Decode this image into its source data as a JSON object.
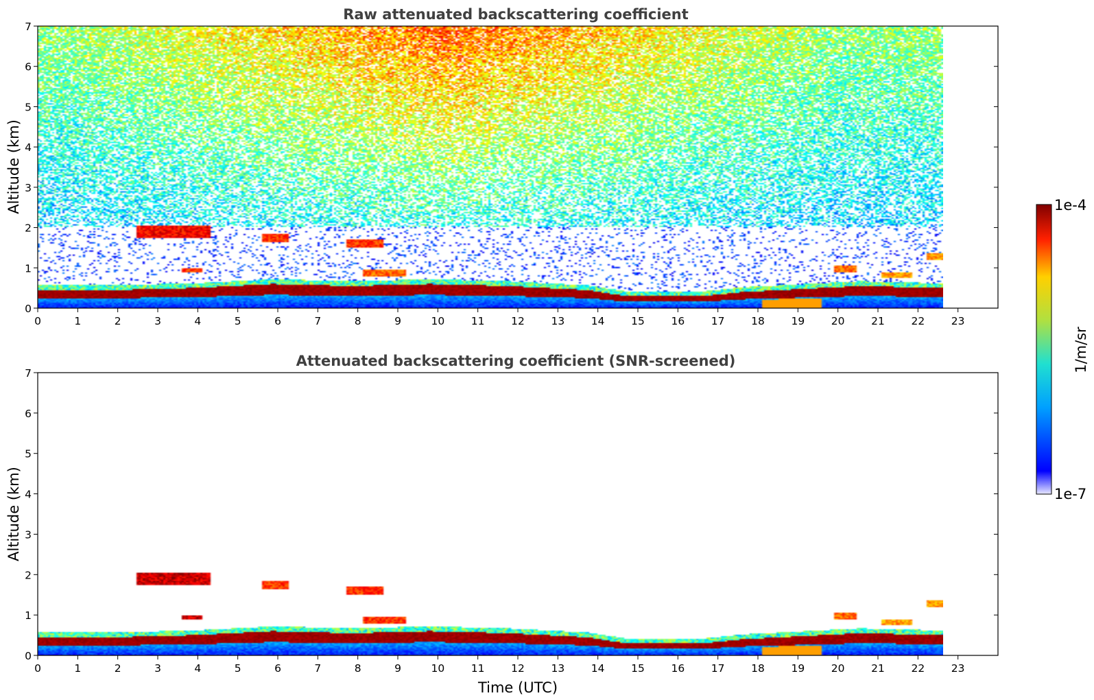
{
  "colorbar": {
    "max_label": "1e-4",
    "min_label": "1e-7",
    "unit_label": "1/m/sr",
    "colormap": "jet",
    "scale": "log",
    "range": [
      1e-07,
      0.0001
    ]
  },
  "chart_data": [
    {
      "type": "heatmap",
      "title": "Raw attenuated backscattering coefficient",
      "xlabel": "",
      "ylabel": "Altitude (km)",
      "xlim": [
        0,
        24
      ],
      "ylim": [
        0,
        7
      ],
      "xticks": [
        "0",
        "1",
        "2",
        "3",
        "4",
        "5",
        "6",
        "7",
        "8",
        "9",
        "10",
        "11",
        "12",
        "13",
        "14",
        "15",
        "16",
        "17",
        "18",
        "19",
        "20",
        "21",
        "22",
        "23"
      ],
      "yticks": [
        "0",
        "1",
        "2",
        "3",
        "4",
        "5",
        "6",
        "7"
      ],
      "data_extent_x": [
        0,
        23.1
      ],
      "boundary_layer_top_km": [
        [
          0,
          0.45
        ],
        [
          2,
          0.45
        ],
        [
          4,
          0.5
        ],
        [
          6,
          0.6
        ],
        [
          8,
          0.55
        ],
        [
          10,
          0.6
        ],
        [
          12,
          0.55
        ],
        [
          14,
          0.45
        ],
        [
          15,
          0.3
        ],
        [
          17,
          0.3
        ],
        [
          18,
          0.4
        ],
        [
          20,
          0.5
        ],
        [
          21,
          0.55
        ],
        [
          23,
          0.5
        ]
      ],
      "cloud_layers": [
        {
          "x": [
            2.5,
            4.4
          ],
          "alt": [
            1.75,
            2.05
          ],
          "level": 0.95
        },
        {
          "x": [
            3.7,
            4.2
          ],
          "alt": [
            0.9,
            1.0
          ],
          "level": 0.9
        },
        {
          "x": [
            5.7,
            6.4
          ],
          "alt": [
            1.65,
            1.85
          ],
          "level": 0.9
        },
        {
          "x": [
            7.9,
            8.8
          ],
          "alt": [
            1.5,
            1.7
          ],
          "level": 0.9
        },
        {
          "x": [
            8.3,
            9.4
          ],
          "alt": [
            0.8,
            0.95
          ],
          "level": 0.85
        },
        {
          "x": [
            20.3,
            20.9
          ],
          "alt": [
            0.9,
            1.05
          ],
          "level": 0.85
        },
        {
          "x": [
            21.5,
            22.3
          ],
          "alt": [
            0.75,
            0.9
          ],
          "level": 0.8
        },
        {
          "x": [
            22.7,
            23.1
          ],
          "alt": [
            1.2,
            1.35
          ],
          "level": 0.8
        }
      ],
      "noise_increase_above_km": 2.0
    },
    {
      "type": "heatmap",
      "title": "Attenuated backscattering coefficient (SNR-screened)",
      "xlabel": "Time (UTC)",
      "ylabel": "Altitude (km)",
      "xlim": [
        0,
        24
      ],
      "ylim": [
        0,
        7
      ],
      "xticks": [
        "0",
        "1",
        "2",
        "3",
        "4",
        "5",
        "6",
        "7",
        "8",
        "9",
        "10",
        "11",
        "12",
        "13",
        "14",
        "15",
        "16",
        "17",
        "18",
        "19",
        "20",
        "21",
        "22",
        "23"
      ],
      "yticks": [
        "0",
        "1",
        "2",
        "3",
        "4",
        "5",
        "6",
        "7"
      ],
      "data_extent_x": [
        0,
        23.1
      ],
      "boundary_layer_top_km": [
        [
          0,
          0.45
        ],
        [
          2,
          0.45
        ],
        [
          4,
          0.5
        ],
        [
          6,
          0.6
        ],
        [
          8,
          0.55
        ],
        [
          10,
          0.6
        ],
        [
          12,
          0.55
        ],
        [
          14,
          0.45
        ],
        [
          15,
          0.3
        ],
        [
          17,
          0.3
        ],
        [
          18,
          0.4
        ],
        [
          20,
          0.5
        ],
        [
          21,
          0.55
        ],
        [
          23,
          0.5
        ]
      ],
      "cloud_layers": [
        {
          "x": [
            2.5,
            4.4
          ],
          "alt": [
            1.75,
            2.05
          ],
          "level": 1.0
        },
        {
          "x": [
            3.7,
            4.2
          ],
          "alt": [
            0.9,
            1.0
          ],
          "level": 1.0
        },
        {
          "x": [
            5.7,
            6.4
          ],
          "alt": [
            1.65,
            1.85
          ],
          "level": 0.9
        },
        {
          "x": [
            7.9,
            8.8
          ],
          "alt": [
            1.5,
            1.7
          ],
          "level": 0.9
        },
        {
          "x": [
            8.3,
            9.4
          ],
          "alt": [
            0.8,
            0.95
          ],
          "level": 0.9
        },
        {
          "x": [
            20.3,
            20.9
          ],
          "alt": [
            0.9,
            1.05
          ],
          "level": 0.85
        },
        {
          "x": [
            21.5,
            22.3
          ],
          "alt": [
            0.75,
            0.9
          ],
          "level": 0.8
        },
        {
          "x": [
            22.7,
            23.1
          ],
          "alt": [
            1.2,
            1.35
          ],
          "level": 0.8
        }
      ],
      "noise_increase_above_km": null
    }
  ]
}
